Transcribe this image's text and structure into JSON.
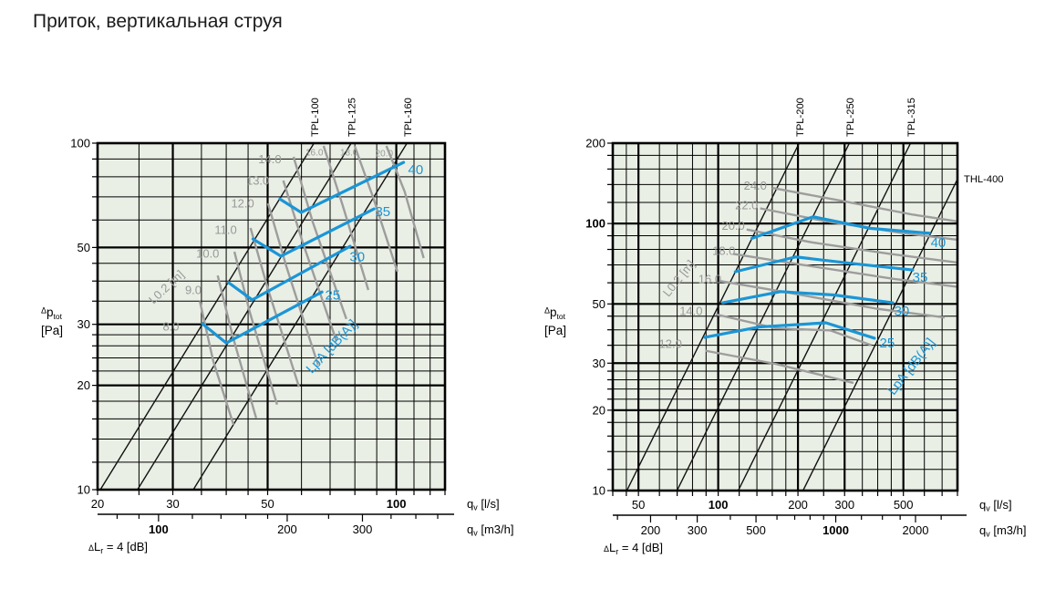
{
  "title": "Приток, вертикальная струя",
  "colors": {
    "page_bg": "#ffffff",
    "plot_bg": "#e9efe4",
    "grid": "#000000",
    "fan_line": "#111111",
    "throw_curve": "#9d9d9d",
    "throw_label": "#999999",
    "noise_curve": "#1b95d6",
    "noise_label": "#1b95d6",
    "text": "#000000",
    "title_text": "#1b1b1b"
  },
  "y_axis_label": {
    "delta": "Δ",
    "main": "p",
    "sub": "tot",
    "unit": "[Pa]"
  },
  "x_axis_label": {
    "main": "q",
    "sub": "v",
    "unit_ls": " [l/s]",
    "unit_m3h": " [m3/h]"
  },
  "footnote": {
    "delta": "Δ",
    "main": "L",
    "sub": "r",
    "rest": " = 4 [dB]"
  },
  "chart_data": [
    {
      "type": "line",
      "x_range": [
        20,
        130
      ],
      "y_range": [
        10,
        100
      ],
      "x_log": true,
      "y_log": true,
      "x_gridlines_bold": [
        30,
        50,
        100
      ],
      "x_gridlines_minor": [
        25,
        35,
        40,
        45,
        60,
        70,
        80,
        90,
        110,
        120
      ],
      "y_gridlines_bold": [
        20,
        30,
        50
      ],
      "y_gridlines_minor": [
        12,
        14,
        16,
        18,
        22,
        24,
        26,
        28,
        35,
        40,
        45,
        60,
        70,
        80,
        90
      ],
      "x_tick_labels": [
        {
          "value": 20,
          "bold": false
        },
        {
          "value": 30,
          "bold": false
        },
        {
          "value": 50,
          "bold": false
        },
        {
          "value": 100,
          "bold": true
        }
      ],
      "y_tick_labels": [
        {
          "value": 10,
          "bold": false
        },
        {
          "value": 20,
          "bold": false
        },
        {
          "value": 30,
          "bold": false
        },
        {
          "value": 50,
          "bold": false
        },
        {
          "value": 100,
          "bold": false
        }
      ],
      "x2_tick_labels": [
        {
          "value": 100,
          "bold": true
        },
        {
          "value": 200,
          "bold": false
        },
        {
          "value": 300,
          "bold": false
        }
      ],
      "x2_minor_ticks": [
        80,
        90,
        120,
        140,
        160,
        180,
        250,
        350,
        400,
        450
      ],
      "fan_lines": [
        {
          "label": "TPL-100",
          "qv_at_10Pa": 20.3
        },
        {
          "label": "TPL-125",
          "qv_at_10Pa": 24.8
        },
        {
          "label": "TPL-160",
          "qv_at_10Pa": 33.5
        }
      ],
      "throw_annotation": {
        "text": "L0.2 [m]",
        "pos": [
          29.4,
          37.7
        ],
        "angle": -43
      },
      "noise_annotation": {
        "text": "LpA [dB(A)]",
        "pos": [
          71.8,
          25.4
        ],
        "angle": -47
      },
      "throw_curves": [
        {
          "label": "8.0",
          "small": false,
          "label_pos": [
            29.7,
            29.6
          ],
          "points": [
            [
              34.7,
              35.0
            ],
            [
              37.3,
              23.5
            ],
            [
              41.6,
              15.4
            ]
          ]
        },
        {
          "label": "9.0",
          "small": false,
          "label_pos": [
            33.5,
            37.7
          ],
          "points": [
            [
              38.2,
              41.5
            ],
            [
              41.4,
              27.8
            ],
            [
              47.0,
              16.1
            ]
          ]
        },
        {
          "label": "10.0",
          "small": false,
          "label_pos": [
            36.2,
            48.0
          ],
          "points": [
            [
              41.8,
              48.6
            ],
            [
              45.4,
              32.6
            ],
            [
              52.6,
              17.6
            ]
          ]
        },
        {
          "label": "11.0",
          "small": false,
          "label_pos": [
            39.9,
            56.2
          ],
          "points": [
            [
              45.6,
              56.9
            ],
            [
              50.1,
              37.9
            ],
            [
              59.2,
              19.8
            ]
          ]
        },
        {
          "label": "12.0",
          "small": false,
          "label_pos": [
            43.7,
            67.0
          ],
          "points": [
            [
              50.1,
              67.0
            ],
            [
              55.3,
              44.1
            ],
            [
              65.6,
              22.9
            ]
          ]
        },
        {
          "label": "13.0",
          "small": false,
          "label_pos": [
            47.4,
            78.0
          ],
          "points": [
            [
              54.4,
              78.0
            ],
            [
              60.4,
              51.7
            ],
            [
              72.4,
              26.9
            ]
          ]
        },
        {
          "label": "14.0",
          "small": false,
          "label_pos": [
            50.6,
            90.0
          ],
          "points": [
            [
              57.5,
              91.3
            ],
            [
              63.7,
              59.4
            ],
            [
              76.4,
              31.1
            ]
          ]
        },
        {
          "label": "16.0",
          "small": true,
          "label_pos": [
            64.3,
            94.7
          ],
          "points": [
            [
              67.6,
              98.2
            ],
            [
              74.9,
              66.2
            ],
            [
              86.0,
              37.7
            ]
          ]
        },
        {
          "label": "18.0",
          "small": true,
          "label_pos": [
            77.5,
            94.7
          ],
          "points": [
            [
              79.9,
              98.2
            ],
            [
              88.5,
              69.1
            ],
            [
              100.6,
              42.6
            ]
          ]
        },
        {
          "label": "20.0",
          "small": true,
          "label_pos": [
            93.7,
            94.1
          ],
          "points": [
            [
              94.8,
              98.2
            ],
            [
              104.6,
              72.5
            ],
            [
              115.9,
              46.6
            ]
          ]
        }
      ],
      "noise_curves": [
        {
          "label": "25",
          "label_pos": [
            71,
            36.5
          ],
          "points": [
            [
              35.2,
              30.1
            ],
            [
              40.0,
              26.5
            ],
            [
              67.0,
              37.2
            ]
          ]
        },
        {
          "label": "30",
          "label_pos": [
            81,
            47.0
          ],
          "points": [
            [
              40.5,
              39.6
            ],
            [
              46.0,
              35.3
            ],
            [
              78.0,
              50.4
            ]
          ]
        },
        {
          "label": "35",
          "label_pos": [
            93,
            63.5
          ],
          "points": [
            [
              46.2,
              52.9
            ],
            [
              53.7,
              47.2
            ],
            [
              88.7,
              64.6
            ]
          ]
        },
        {
          "label": "40",
          "label_pos": [
            111,
            84.0
          ],
          "points": [
            [
              53.4,
              69.0
            ],
            [
              59.9,
              63.1
            ],
            [
              104.0,
              88.0
            ]
          ]
        }
      ]
    },
    {
      "type": "line",
      "x_range": [
        40,
        800
      ],
      "y_range": [
        10,
        200
      ],
      "x_log": true,
      "y_log": true,
      "x_gridlines_bold": [
        50,
        100,
        200,
        300,
        500
      ],
      "x_gridlines_minor": [
        45,
        60,
        70,
        80,
        90,
        120,
        140,
        160,
        180,
        250,
        350,
        400,
        450,
        600,
        700
      ],
      "y_gridlines_bold": [
        20,
        30,
        50,
        100
      ],
      "y_gridlines_minor": [
        12,
        14,
        16,
        18,
        22,
        24,
        26,
        28,
        35,
        40,
        45,
        60,
        70,
        80,
        90,
        120,
        140,
        160,
        180
      ],
      "x_tick_labels": [
        {
          "value": 50,
          "bold": false
        },
        {
          "value": 100,
          "bold": true
        },
        {
          "value": 200,
          "bold": false
        },
        {
          "value": 300,
          "bold": false
        },
        {
          "value": 500,
          "bold": false
        }
      ],
      "y_tick_labels": [
        {
          "value": 10,
          "bold": false
        },
        {
          "value": 20,
          "bold": false
        },
        {
          "value": 30,
          "bold": false
        },
        {
          "value": 50,
          "bold": false
        },
        {
          "value": 100,
          "bold": true
        },
        {
          "value": 200,
          "bold": false
        }
      ],
      "x2_tick_labels": [
        {
          "value": 200,
          "bold": false
        },
        {
          "value": 300,
          "bold": false
        },
        {
          "value": 500,
          "bold": false
        },
        {
          "value": 1000,
          "bold": true
        },
        {
          "value": 2000,
          "bold": false
        }
      ],
      "x2_minor_ticks": [
        150,
        250,
        400,
        600,
        700,
        800,
        900,
        1250,
        1500,
        1750,
        2500
      ],
      "fan_lines": [
        {
          "label": "TPL-200",
          "qv_at_10Pa": 45.2
        },
        {
          "label": "TPL-250",
          "qv_at_10Pa": 69.9
        },
        {
          "label": "TPL-315",
          "qv_at_10Pa": 119.0
        },
        {
          "label": "THL-400",
          "qv_at_10Pa": 209.0
        }
      ],
      "throw_annotation": {
        "text": "L0.2 [m]",
        "pos": [
          73,
          61
        ],
        "angle": -51
      },
      "noise_annotation": {
        "text": "LpA [dB(A)]",
        "pos": [
          551,
          28.5
        ],
        "angle": -52
      },
      "throw_curves": [
        {
          "label": "12.0",
          "small": false,
          "label_pos": [
            66,
            35.5
          ],
          "points": [
            [
              89.5,
              33.4
            ],
            [
              165,
              29.8
            ],
            [
              324,
              25.3
            ]
          ]
        },
        {
          "label": "14.0",
          "small": false,
          "label_pos": [
            79,
            47.0
          ],
          "points": [
            [
              98,
              45.7
            ],
            [
              166,
              40.5
            ],
            [
              265,
              39.8
            ],
            [
              379,
              35.0
            ]
          ]
        },
        {
          "label": "16.0",
          "small": false,
          "label_pos": [
            93,
            62.0
          ],
          "points": [
            [
              101,
              61.0
            ],
            [
              186,
              55.0
            ],
            [
              395,
              48.0
            ],
            [
              716,
              44.5
            ]
          ]
        },
        {
          "label": "18.0",
          "small": false,
          "label_pos": [
            105,
            79.0
          ],
          "points": [
            [
              114,
              77.0
            ],
            [
              209,
              70.0
            ],
            [
              462,
              62.0
            ],
            [
              794,
              58.0
            ]
          ]
        },
        {
          "label": "20.0",
          "small": false,
          "label_pos": [
            114,
            98.0
          ],
          "points": [
            [
              128,
              95.0
            ],
            [
              226,
              85.0
            ],
            [
              445,
              77.0
            ],
            [
              794,
              71.5
            ]
          ]
        },
        {
          "label": "22.0",
          "small": false,
          "label_pos": [
            128,
            117.0
          ],
          "points": [
            [
              144,
              114.0
            ],
            [
              255,
              102.0
            ],
            [
              501,
              92.0
            ],
            [
              794,
              87.0
            ]
          ]
        },
        {
          "label": "24.0",
          "small": false,
          "label_pos": [
            138,
            139.0
          ],
          "points": [
            [
              160,
              136.0
            ],
            [
              287,
              122.0
            ],
            [
              542,
              108.0
            ],
            [
              794,
              102.0
            ]
          ]
        }
      ],
      "noise_curves": [
        {
          "label": "25",
          "label_pos": [
            434,
            35.8
          ],
          "points": [
            [
              89,
              37.5
            ],
            [
              143,
              41.0
            ],
            [
              255,
              42.5
            ],
            [
              389,
              37.2
            ]
          ]
        },
        {
          "label": "30",
          "label_pos": [
            493,
            47.0
          ],
          "points": [
            [
              104,
              50.5
            ],
            [
              172,
              55.6
            ],
            [
              274,
              54.0
            ],
            [
              456,
              50.5
            ]
          ]
        },
        {
          "label": "35",
          "label_pos": [
            578,
            63.0
          ],
          "points": [
            [
              116,
              66.0
            ],
            [
              196,
              75.0
            ],
            [
              314,
              71.0
            ],
            [
              542,
              67.0
            ]
          ]
        },
        {
          "label": "40",
          "label_pos": [
            677,
            85.0
          ],
          "points": [
            [
              134,
              88.0
            ],
            [
              228,
              106.0
            ],
            [
              373,
              96.0
            ],
            [
              626,
              92.0
            ]
          ]
        }
      ]
    }
  ]
}
